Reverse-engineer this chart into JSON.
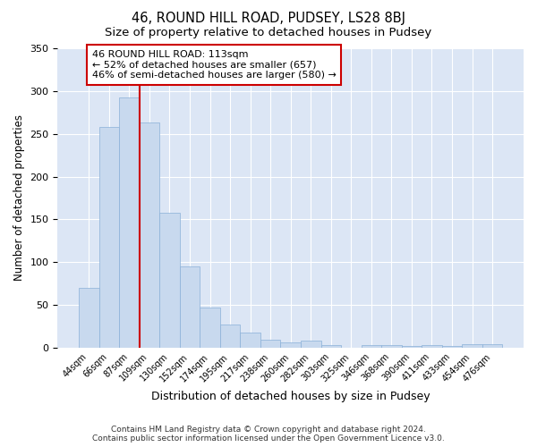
{
  "title": "46, ROUND HILL ROAD, PUDSEY, LS28 8BJ",
  "subtitle": "Size of property relative to detached houses in Pudsey",
  "xlabel": "Distribution of detached houses by size in Pudsey",
  "ylabel": "Number of detached properties",
  "categories": [
    "44sqm",
    "66sqm",
    "87sqm",
    "109sqm",
    "130sqm",
    "152sqm",
    "174sqm",
    "195sqm",
    "217sqm",
    "238sqm",
    "260sqm",
    "282sqm",
    "303sqm",
    "325sqm",
    "346sqm",
    "368sqm",
    "390sqm",
    "411sqm",
    "433sqm",
    "454sqm",
    "476sqm"
  ],
  "values": [
    70,
    258,
    293,
    263,
    158,
    95,
    47,
    27,
    18,
    9,
    6,
    8,
    3,
    0,
    3,
    3,
    2,
    3,
    2,
    4,
    4
  ],
  "bar_color": "#c8d9ee",
  "bar_edge_color": "#8ab0d8",
  "vline_color": "#cc0000",
  "vline_index": 3,
  "annotation_text": "46 ROUND HILL ROAD: 113sqm\n← 52% of detached houses are smaller (657)\n46% of semi-detached houses are larger (580) →",
  "footer": "Contains HM Land Registry data © Crown copyright and database right 2024.\nContains public sector information licensed under the Open Government Licence v3.0.",
  "bg_color": "#dce6f5",
  "ylim": [
    0,
    350
  ],
  "yticks": [
    0,
    50,
    100,
    150,
    200,
    250,
    300,
    350
  ]
}
